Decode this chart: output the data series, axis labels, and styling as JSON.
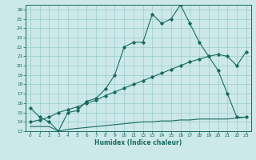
{
  "title": "",
  "xlabel": "Humidex (Indice chaleur)",
  "xlim": [
    -0.5,
    23.5
  ],
  "ylim": [
    13,
    26.5
  ],
  "yticks": [
    13,
    14,
    15,
    16,
    17,
    18,
    19,
    20,
    21,
    22,
    23,
    24,
    25,
    26
  ],
  "xticks": [
    0,
    1,
    2,
    3,
    4,
    5,
    6,
    7,
    8,
    9,
    10,
    11,
    12,
    13,
    14,
    15,
    16,
    17,
    18,
    19,
    20,
    21,
    22,
    23
  ],
  "bg_color": "#cce8e8",
  "line_color": "#1a6b60",
  "grid_color": "#99cccc",
  "line1_x": [
    0,
    1,
    2,
    3,
    4,
    5,
    6,
    7,
    8,
    9,
    10,
    11,
    12,
    13,
    14,
    15,
    16,
    17,
    18,
    19,
    20,
    21,
    22,
    23
  ],
  "line1_y": [
    15.5,
    14.5,
    14.0,
    13.0,
    15.0,
    15.2,
    16.2,
    16.5,
    17.5,
    19.0,
    22.0,
    22.5,
    22.5,
    25.5,
    24.5,
    25.0,
    26.5,
    24.5,
    22.5,
    21.0,
    19.5,
    17.0,
    14.5,
    14.5
  ],
  "line2_x": [
    0,
    1,
    2,
    3,
    4,
    5,
    6,
    7,
    8,
    9,
    10,
    11,
    12,
    13,
    14,
    15,
    16,
    17,
    18,
    19,
    20,
    21,
    22,
    23
  ],
  "line2_y": [
    14.0,
    14.2,
    14.5,
    15.0,
    15.3,
    15.6,
    16.0,
    16.3,
    16.8,
    17.2,
    17.6,
    18.0,
    18.4,
    18.8,
    19.2,
    19.6,
    20.0,
    20.4,
    20.7,
    21.0,
    21.2,
    21.0,
    20.0,
    21.5
  ],
  "line3_x": [
    0,
    1,
    2,
    3,
    4,
    5,
    6,
    7,
    8,
    9,
    10,
    11,
    12,
    13,
    14,
    15,
    16,
    17,
    18,
    19,
    20,
    21,
    22,
    23
  ],
  "line3_y": [
    13.5,
    13.5,
    13.5,
    13.0,
    13.2,
    13.3,
    13.4,
    13.5,
    13.6,
    13.7,
    13.8,
    13.9,
    14.0,
    14.0,
    14.1,
    14.1,
    14.2,
    14.2,
    14.3,
    14.3,
    14.3,
    14.3,
    14.4,
    14.5
  ]
}
